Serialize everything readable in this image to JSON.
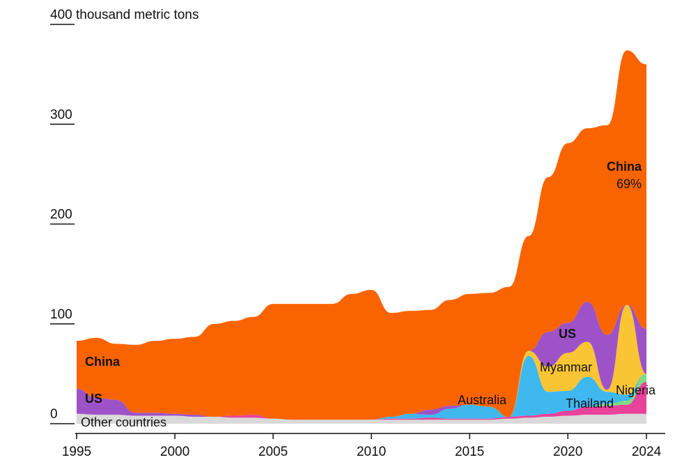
{
  "chart_data": {
    "type": "area",
    "ylabel": "400 thousand metric tons",
    "ylim": [
      0,
      400
    ],
    "y_ticks": [
      {
        "value": 0,
        "label": "0"
      },
      {
        "value": 100,
        "label": "100"
      },
      {
        "value": 200,
        "label": "200"
      },
      {
        "value": 300,
        "label": "300"
      },
      {
        "value": 400,
        "label": "400 thousand metric tons"
      }
    ],
    "xlim": [
      1995,
      2024
    ],
    "x_ticks": [
      {
        "value": 1995,
        "label": "1995"
      },
      {
        "value": 2000,
        "label": "2000"
      },
      {
        "value": 2005,
        "label": "2005"
      },
      {
        "value": 2010,
        "label": "2010"
      },
      {
        "value": 2015,
        "label": "2015"
      },
      {
        "value": 2020,
        "label": "2020"
      },
      {
        "value": 2024,
        "label": "2024"
      }
    ],
    "x": [
      1995,
      1996,
      1997,
      1998,
      1999,
      2000,
      2001,
      2002,
      2003,
      2004,
      2005,
      2006,
      2007,
      2008,
      2009,
      2010,
      2011,
      2012,
      2013,
      2014,
      2015,
      2016,
      2017,
      2018,
      2019,
      2020,
      2021,
      2022,
      2023,
      2024
    ],
    "series": [
      {
        "name": "Other countries",
        "color": "#d9d9d9",
        "values": [
          10,
          9,
          9,
          8,
          8,
          8,
          7,
          7,
          6,
          6,
          5,
          4,
          4,
          4,
          4,
          4,
          4,
          4,
          4,
          4,
          4,
          4,
          5,
          6,
          7,
          8,
          9,
          9,
          10,
          10
        ]
      },
      {
        "name": "Thailand",
        "color": "#e8429b",
        "values": [
          0,
          0,
          0,
          0,
          0,
          0,
          0,
          0,
          2,
          3,
          0,
          0,
          0,
          0,
          0,
          0,
          1,
          1,
          2,
          1,
          1,
          1,
          2,
          2,
          3,
          5,
          8,
          9,
          9,
          32
        ]
      },
      {
        "name": "Nigeria",
        "color": "#7fdc7f",
        "values": [
          0,
          0,
          0,
          0,
          0,
          0,
          0,
          0,
          0,
          0,
          0,
          0,
          0,
          0,
          0,
          0,
          0,
          0,
          0,
          0,
          0,
          0,
          0,
          0,
          0,
          0,
          0,
          2,
          4,
          8
        ]
      },
      {
        "name": "Australia",
        "color": "#3fb8f0",
        "values": [
          0,
          0,
          0,
          0,
          0,
          0,
          0,
          0,
          0,
          0,
          0,
          0,
          0,
          0,
          0,
          0,
          2,
          5,
          3,
          10,
          14,
          12,
          0,
          60,
          22,
          20,
          30,
          12,
          6,
          0
        ]
      },
      {
        "name": "Myanmar",
        "color": "#fac535",
        "values": [
          0,
          0,
          0,
          0,
          0,
          0,
          0,
          0,
          0,
          0,
          0,
          0,
          0,
          0,
          0,
          0,
          0,
          0,
          0,
          0,
          0,
          0,
          0,
          5,
          25,
          38,
          35,
          2,
          90,
          0
        ]
      },
      {
        "name": "US",
        "color": "#9e52c7",
        "values": [
          25,
          17,
          15,
          3,
          3,
          2,
          2,
          0,
          0,
          0,
          0,
          0,
          0,
          0,
          0,
          0,
          0,
          0,
          5,
          3,
          0,
          0,
          0,
          0,
          35,
          30,
          40,
          55,
          0,
          45
        ]
      },
      {
        "name": "China",
        "color": "#fa6400",
        "values": [
          48,
          60,
          56,
          68,
          72,
          75,
          78,
          93,
          95,
          98,
          115,
          116,
          116,
          116,
          126,
          130,
          104,
          103,
          100,
          106,
          111,
          114,
          130,
          115,
          155,
          180,
          174,
          210,
          255,
          265
        ]
      }
    ],
    "annotations": [
      {
        "text": "China",
        "bold": true
      },
      {
        "text": "US",
        "bold": true
      },
      {
        "text": "Other countries",
        "bold": false
      },
      {
        "text": "China",
        "bold": true
      },
      {
        "text": "69%",
        "bold": false
      },
      {
        "text": "US",
        "bold": true
      },
      {
        "text": "Myanmar",
        "bold": false
      },
      {
        "text": "Australia",
        "bold": false
      },
      {
        "text": "Thailand",
        "bold": false
      },
      {
        "text": "Nigeria",
        "bold": false
      }
    ]
  }
}
